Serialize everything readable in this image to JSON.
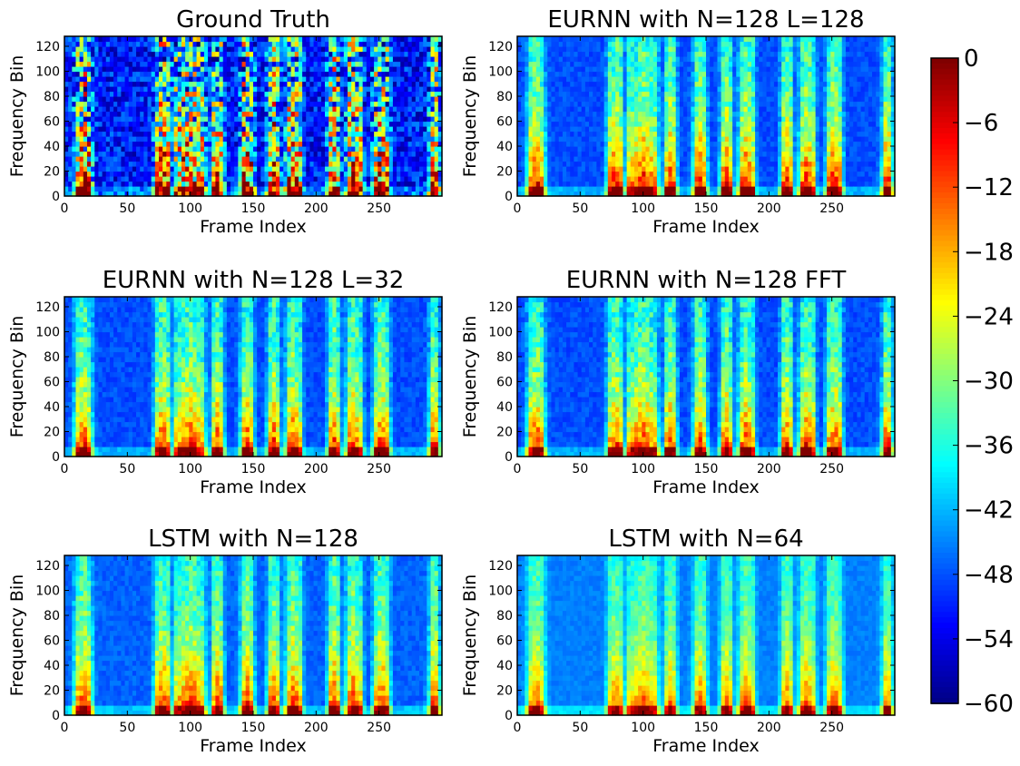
{
  "chart_data": {
    "type": "heatmap",
    "colormap": "jet",
    "grid": false,
    "panels": [
      {
        "title": "Ground Truth",
        "xlabel": "Frame Index",
        "ylabel": "Frequency Bin",
        "xlim": [
          0,
          300
        ],
        "ylim": [
          0,
          128
        ],
        "xticks": [
          0,
          50,
          100,
          150,
          200,
          250
        ],
        "yticks": [
          0,
          20,
          40,
          60,
          80,
          100,
          120
        ]
      },
      {
        "title": "EURNN with N=128 L=128",
        "xlabel": "Frame Index",
        "ylabel": "Frequency Bin",
        "xlim": [
          0,
          300
        ],
        "ylim": [
          0,
          128
        ],
        "xticks": [
          0,
          50,
          100,
          150,
          200,
          250
        ],
        "yticks": [
          0,
          20,
          40,
          60,
          80,
          100,
          120
        ]
      },
      {
        "title": "EURNN with N=128 L=32",
        "xlabel": "Frame Index",
        "ylabel": "Frequency Bin",
        "xlim": [
          0,
          300
        ],
        "ylim": [
          0,
          128
        ],
        "xticks": [
          0,
          50,
          100,
          150,
          200,
          250
        ],
        "yticks": [
          0,
          20,
          40,
          60,
          80,
          100,
          120
        ]
      },
      {
        "title": "EURNN with N=128 FFT",
        "xlabel": "Frame Index",
        "ylabel": "Frequency Bin",
        "xlim": [
          0,
          300
        ],
        "ylim": [
          0,
          128
        ],
        "xticks": [
          0,
          50,
          100,
          150,
          200,
          250
        ],
        "yticks": [
          0,
          20,
          40,
          60,
          80,
          100,
          120
        ]
      },
      {
        "title": "LSTM with N=128",
        "xlabel": "Frame Index",
        "ylabel": "Frequency Bin",
        "xlim": [
          0,
          300
        ],
        "ylim": [
          0,
          128
        ],
        "xticks": [
          0,
          50,
          100,
          150,
          200,
          250
        ],
        "yticks": [
          0,
          20,
          40,
          60,
          80,
          100,
          120
        ]
      },
      {
        "title": "LSTM with N=64",
        "xlabel": "Frame Index",
        "ylabel": "Frequency Bin",
        "xlim": [
          0,
          300
        ],
        "ylim": [
          0,
          128
        ],
        "xticks": [
          0,
          50,
          100,
          150,
          200,
          250
        ],
        "yticks": [
          0,
          20,
          40,
          60,
          80,
          100,
          120
        ]
      }
    ],
    "speech_segments_frames": [
      [
        8,
        22
      ],
      [
        72,
        84
      ],
      [
        88,
        112
      ],
      [
        118,
        126
      ],
      [
        140,
        150
      ],
      [
        162,
        170
      ],
      [
        176,
        188
      ],
      [
        210,
        218
      ],
      [
        224,
        236
      ],
      [
        246,
        258
      ],
      [
        290,
        298
      ]
    ],
    "colorbar": {
      "range": [
        -60,
        0
      ],
      "ticks": [
        0,
        -6,
        -12,
        -18,
        -24,
        -30,
        -36,
        -42,
        -48,
        -54,
        -60
      ],
      "tick_labels": [
        "0",
        "−6",
        "−12",
        "−18",
        "−24",
        "−30",
        "−36",
        "−42",
        "−48",
        "−54",
        "−60"
      ]
    }
  }
}
